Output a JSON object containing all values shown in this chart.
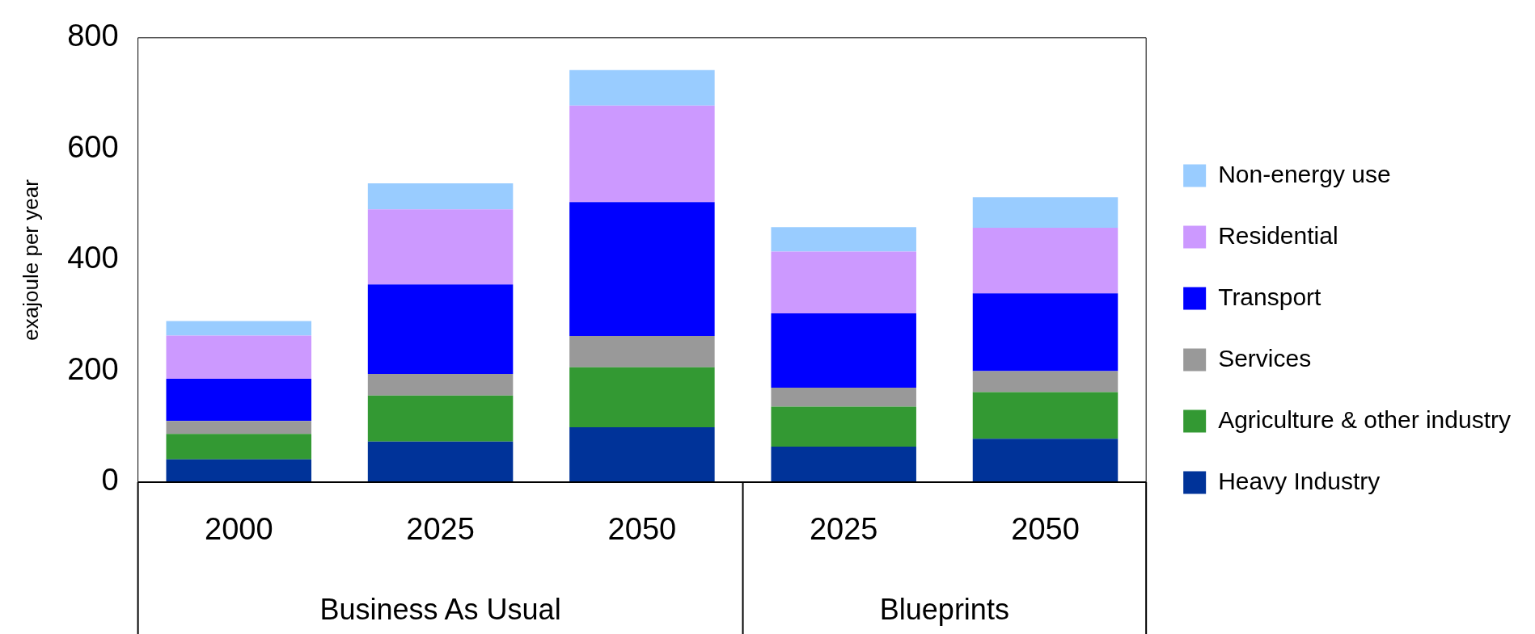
{
  "chart_data": {
    "type": "bar",
    "stacked": true,
    "ylabel": "exajoule per year",
    "categories": [
      "2000",
      "2025",
      "2050",
      "2025",
      "2050"
    ],
    "series": [
      {
        "name": "Heavy Industry",
        "color": "#003399",
        "values": [
          41,
          73,
          99,
          64,
          78
        ]
      },
      {
        "name": "Agriculture & other industry",
        "color": "#339933",
        "values": [
          46,
          83,
          108,
          72,
          84
        ]
      },
      {
        "name": "Services",
        "color": "#999999",
        "values": [
          23,
          39,
          56,
          34,
          38
        ]
      },
      {
        "name": "Transport",
        "color": "#0000ff",
        "values": [
          76,
          161,
          241,
          134,
          140
        ]
      },
      {
        "name": "Residential",
        "color": "#cc99ff",
        "values": [
          78,
          135,
          174,
          111,
          118
        ]
      },
      {
        "name": "Non-energy use",
        "color": "#99ccff",
        "values": [
          26,
          47,
          64,
          44,
          55
        ]
      }
    ],
    "ylim": [
      0,
      800
    ],
    "yticks": [
      0,
      200,
      400,
      600,
      800
    ],
    "grid": false,
    "legend": "right",
    "annotations": [
      "Business As Usual",
      "Blueprints"
    ]
  }
}
